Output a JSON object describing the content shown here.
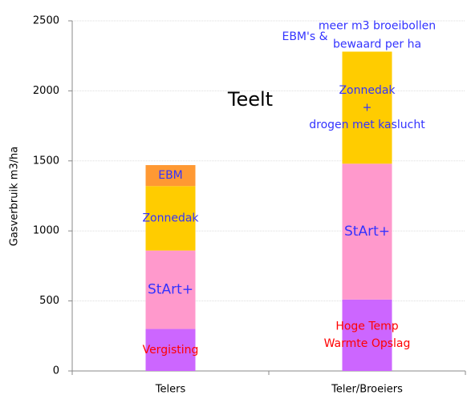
{
  "chart_data": {
    "type": "stacked_bar",
    "y_label": "Gasverbruik m3/ha",
    "categories": [
      "Telers",
      "Teler/Broeiers"
    ],
    "ylim": [
      0,
      2500
    ],
    "yticks": [
      0,
      500,
      1000,
      1500,
      2000,
      2500
    ],
    "grid": true,
    "series": [
      {
        "color": "#cc66ff",
        "values": [
          300,
          510
        ],
        "label_color": "#ff0000",
        "labels": [
          [
            "Vergisting"
          ],
          [
            "Hoge Temp",
            "Warmte Opslag"
          ]
        ]
      },
      {
        "color": "#ff99cc",
        "values": [
          560,
          970
        ],
        "label_color": "#3333ff",
        "labels": [
          [
            "StArt+"
          ],
          [
            "StArt+"
          ]
        ]
      },
      {
        "color": "#ffcc00",
        "values": [
          460,
          800
        ],
        "label_color": "#3333ff",
        "labels": [
          [
            "Zonnedak"
          ],
          [
            "Zonnedak",
            "+",
            "drogen met kaslucht"
          ]
        ]
      },
      {
        "color": "#ff9933",
        "values": [
          150,
          null
        ],
        "label_color": "#3333ff",
        "labels": [
          [
            "EBM"
          ],
          null
        ]
      }
    ],
    "annotations": [
      {
        "lines": [
          "Teelt"
        ],
        "color": "#000000"
      },
      {
        "lines": [
          "EBM's &"
        ],
        "color": "#3333ff"
      },
      {
        "lines": [
          "meer m3 broeibollen",
          "bewaard per ha"
        ],
        "color": "#3333ff"
      }
    ]
  }
}
